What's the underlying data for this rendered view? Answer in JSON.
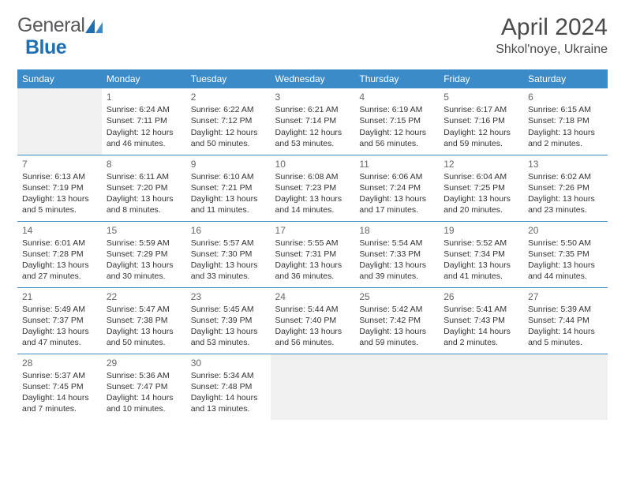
{
  "logo": {
    "word1": "General",
    "word2": "Blue"
  },
  "header": {
    "month": "April 2024",
    "location": "Shkol'noye, Ukraine"
  },
  "style": {
    "header_bg": "#3b8bc9",
    "header_fg": "#ffffff",
    "page_bg": "#ffffff",
    "text_color": "#333333",
    "daynum_color": "#666666",
    "empty_bg": "#f0f0f0",
    "rule_color": "#3b8bc9",
    "logo_gray": "#58595b",
    "logo_blue": "#1f6fb2",
    "month_fontsize": 30,
    "location_fontsize": 16,
    "th_fontsize": 12,
    "cell_fontsize": 10.5
  },
  "weekdays": [
    "Sunday",
    "Monday",
    "Tuesday",
    "Wednesday",
    "Thursday",
    "Friday",
    "Saturday"
  ],
  "weeks": [
    [
      null,
      {
        "n": "1",
        "sunrise": "Sunrise: 6:24 AM",
        "sunset": "Sunset: 7:11 PM",
        "day1": "Daylight: 12 hours",
        "day2": "and 46 minutes."
      },
      {
        "n": "2",
        "sunrise": "Sunrise: 6:22 AM",
        "sunset": "Sunset: 7:12 PM",
        "day1": "Daylight: 12 hours",
        "day2": "and 50 minutes."
      },
      {
        "n": "3",
        "sunrise": "Sunrise: 6:21 AM",
        "sunset": "Sunset: 7:14 PM",
        "day1": "Daylight: 12 hours",
        "day2": "and 53 minutes."
      },
      {
        "n": "4",
        "sunrise": "Sunrise: 6:19 AM",
        "sunset": "Sunset: 7:15 PM",
        "day1": "Daylight: 12 hours",
        "day2": "and 56 minutes."
      },
      {
        "n": "5",
        "sunrise": "Sunrise: 6:17 AM",
        "sunset": "Sunset: 7:16 PM",
        "day1": "Daylight: 12 hours",
        "day2": "and 59 minutes."
      },
      {
        "n": "6",
        "sunrise": "Sunrise: 6:15 AM",
        "sunset": "Sunset: 7:18 PM",
        "day1": "Daylight: 13 hours",
        "day2": "and 2 minutes."
      }
    ],
    [
      {
        "n": "7",
        "sunrise": "Sunrise: 6:13 AM",
        "sunset": "Sunset: 7:19 PM",
        "day1": "Daylight: 13 hours",
        "day2": "and 5 minutes."
      },
      {
        "n": "8",
        "sunrise": "Sunrise: 6:11 AM",
        "sunset": "Sunset: 7:20 PM",
        "day1": "Daylight: 13 hours",
        "day2": "and 8 minutes."
      },
      {
        "n": "9",
        "sunrise": "Sunrise: 6:10 AM",
        "sunset": "Sunset: 7:21 PM",
        "day1": "Daylight: 13 hours",
        "day2": "and 11 minutes."
      },
      {
        "n": "10",
        "sunrise": "Sunrise: 6:08 AM",
        "sunset": "Sunset: 7:23 PM",
        "day1": "Daylight: 13 hours",
        "day2": "and 14 minutes."
      },
      {
        "n": "11",
        "sunrise": "Sunrise: 6:06 AM",
        "sunset": "Sunset: 7:24 PM",
        "day1": "Daylight: 13 hours",
        "day2": "and 17 minutes."
      },
      {
        "n": "12",
        "sunrise": "Sunrise: 6:04 AM",
        "sunset": "Sunset: 7:25 PM",
        "day1": "Daylight: 13 hours",
        "day2": "and 20 minutes."
      },
      {
        "n": "13",
        "sunrise": "Sunrise: 6:02 AM",
        "sunset": "Sunset: 7:26 PM",
        "day1": "Daylight: 13 hours",
        "day2": "and 23 minutes."
      }
    ],
    [
      {
        "n": "14",
        "sunrise": "Sunrise: 6:01 AM",
        "sunset": "Sunset: 7:28 PM",
        "day1": "Daylight: 13 hours",
        "day2": "and 27 minutes."
      },
      {
        "n": "15",
        "sunrise": "Sunrise: 5:59 AM",
        "sunset": "Sunset: 7:29 PM",
        "day1": "Daylight: 13 hours",
        "day2": "and 30 minutes."
      },
      {
        "n": "16",
        "sunrise": "Sunrise: 5:57 AM",
        "sunset": "Sunset: 7:30 PM",
        "day1": "Daylight: 13 hours",
        "day2": "and 33 minutes."
      },
      {
        "n": "17",
        "sunrise": "Sunrise: 5:55 AM",
        "sunset": "Sunset: 7:31 PM",
        "day1": "Daylight: 13 hours",
        "day2": "and 36 minutes."
      },
      {
        "n": "18",
        "sunrise": "Sunrise: 5:54 AM",
        "sunset": "Sunset: 7:33 PM",
        "day1": "Daylight: 13 hours",
        "day2": "and 39 minutes."
      },
      {
        "n": "19",
        "sunrise": "Sunrise: 5:52 AM",
        "sunset": "Sunset: 7:34 PM",
        "day1": "Daylight: 13 hours",
        "day2": "and 41 minutes."
      },
      {
        "n": "20",
        "sunrise": "Sunrise: 5:50 AM",
        "sunset": "Sunset: 7:35 PM",
        "day1": "Daylight: 13 hours",
        "day2": "and 44 minutes."
      }
    ],
    [
      {
        "n": "21",
        "sunrise": "Sunrise: 5:49 AM",
        "sunset": "Sunset: 7:37 PM",
        "day1": "Daylight: 13 hours",
        "day2": "and 47 minutes."
      },
      {
        "n": "22",
        "sunrise": "Sunrise: 5:47 AM",
        "sunset": "Sunset: 7:38 PM",
        "day1": "Daylight: 13 hours",
        "day2": "and 50 minutes."
      },
      {
        "n": "23",
        "sunrise": "Sunrise: 5:45 AM",
        "sunset": "Sunset: 7:39 PM",
        "day1": "Daylight: 13 hours",
        "day2": "and 53 minutes."
      },
      {
        "n": "24",
        "sunrise": "Sunrise: 5:44 AM",
        "sunset": "Sunset: 7:40 PM",
        "day1": "Daylight: 13 hours",
        "day2": "and 56 minutes."
      },
      {
        "n": "25",
        "sunrise": "Sunrise: 5:42 AM",
        "sunset": "Sunset: 7:42 PM",
        "day1": "Daylight: 13 hours",
        "day2": "and 59 minutes."
      },
      {
        "n": "26",
        "sunrise": "Sunrise: 5:41 AM",
        "sunset": "Sunset: 7:43 PM",
        "day1": "Daylight: 14 hours",
        "day2": "and 2 minutes."
      },
      {
        "n": "27",
        "sunrise": "Sunrise: 5:39 AM",
        "sunset": "Sunset: 7:44 PM",
        "day1": "Daylight: 14 hours",
        "day2": "and 5 minutes."
      }
    ],
    [
      {
        "n": "28",
        "sunrise": "Sunrise: 5:37 AM",
        "sunset": "Sunset: 7:45 PM",
        "day1": "Daylight: 14 hours",
        "day2": "and 7 minutes."
      },
      {
        "n": "29",
        "sunrise": "Sunrise: 5:36 AM",
        "sunset": "Sunset: 7:47 PM",
        "day1": "Daylight: 14 hours",
        "day2": "and 10 minutes."
      },
      {
        "n": "30",
        "sunrise": "Sunrise: 5:34 AM",
        "sunset": "Sunset: 7:48 PM",
        "day1": "Daylight: 14 hours",
        "day2": "and 13 minutes."
      },
      null,
      null,
      null,
      null
    ]
  ]
}
